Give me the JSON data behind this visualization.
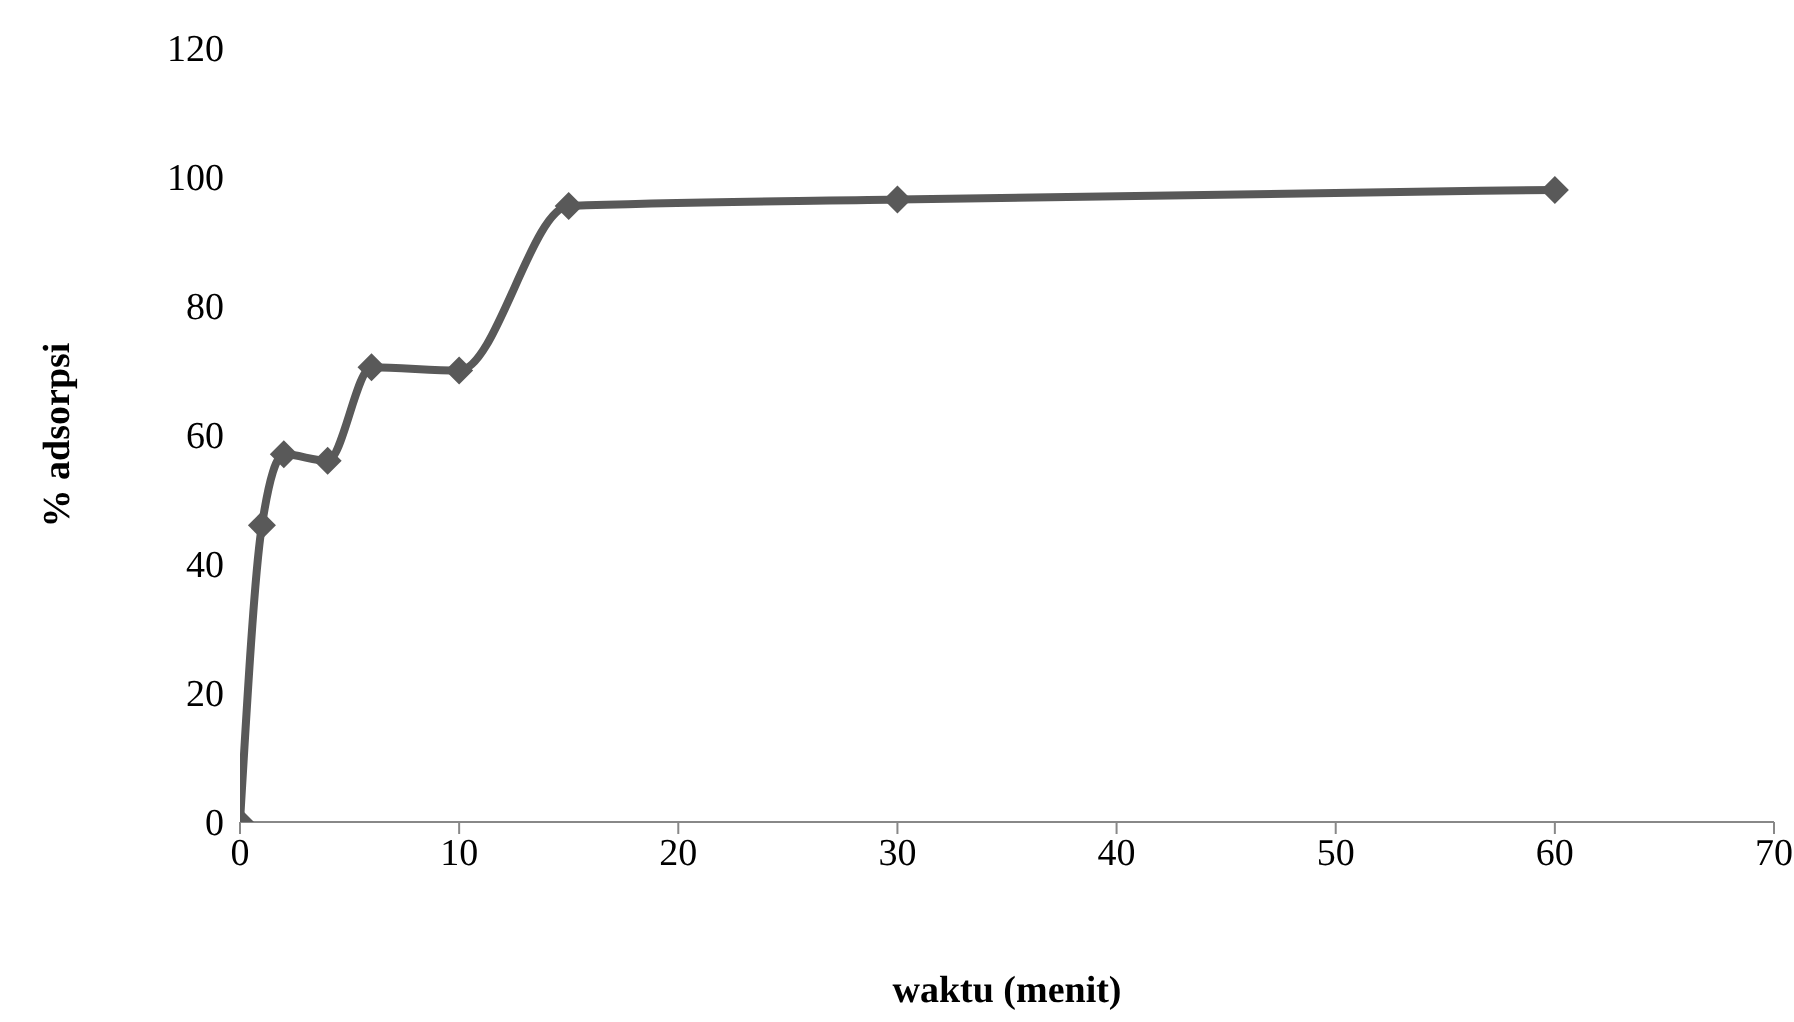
{
  "chart_data": {
    "type": "line",
    "xlabel": "waktu (menit)",
    "ylabel": "% adsorpsi",
    "x": [
      0,
      1,
      2,
      4,
      6,
      10,
      15,
      30,
      60
    ],
    "series": [
      {
        "color": "#595959",
        "values": [
          0,
          46,
          57,
          56,
          70.5,
          70,
          95.5,
          96.5,
          98
        ]
      }
    ],
    "xlim": [
      0,
      70
    ],
    "xticks": [
      0,
      10,
      20,
      30,
      40,
      50,
      60,
      70
    ],
    "ylim": [
      0,
      120
    ],
    "yticks": [
      0,
      20,
      40,
      60,
      80,
      100,
      120
    ],
    "grid": false,
    "legend": false,
    "marker": "diamond",
    "line_style": "solid"
  }
}
